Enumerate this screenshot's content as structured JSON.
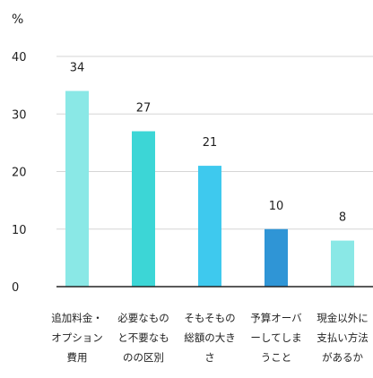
{
  "chart_data": {
    "type": "bar",
    "y_unit": "%",
    "ylim": [
      0,
      40
    ],
    "yticks": [
      0,
      10,
      20,
      30,
      40
    ],
    "grid": true,
    "categories": [
      "追加料金・\nオプション\n費用",
      "必要なもの\nと不要なも\nのの区別",
      "そもそもの\n総額の大き\nさ",
      "予算オーバ\nーしてしま\nうこと",
      "現金以外に\n支払い方法\nがあるか"
    ],
    "values": [
      34,
      27,
      21,
      10,
      8
    ],
    "value_labels": [
      "34",
      "27",
      "21",
      "10",
      "8"
    ],
    "colors": [
      "#8ae8e6",
      "#3cd6d6",
      "#3ec9ee",
      "#2f95d6",
      "#8ae8e6"
    ]
  }
}
